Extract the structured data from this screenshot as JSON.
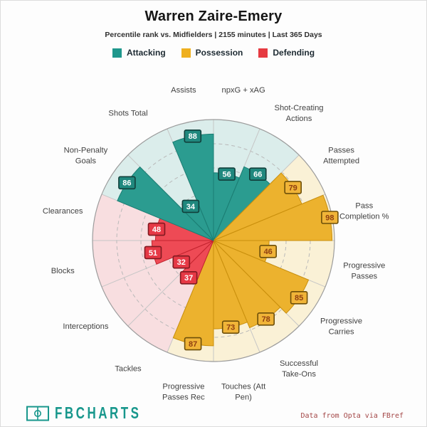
{
  "header": {
    "title": "Warren Zaire-Emery",
    "subtitle": "Percentile rank vs. Midfielders | 2155 minutes | Last 365 Days"
  },
  "legend": [
    {
      "label": "Attacking",
      "color": "#1f978c"
    },
    {
      "label": "Possession",
      "color": "#efb01f"
    },
    {
      "label": "Defending",
      "color": "#e63a41"
    }
  ],
  "footer": {
    "brand": "FBCHARTS",
    "brand_color": "#18978c",
    "credit": "Data from Opta via FBref"
  },
  "chart_data": {
    "type": "bar",
    "variant": "polar-pizza-percentile",
    "title": "Warren Zaire-Emery",
    "subtitle": "Percentile rank vs. Midfielders | 2155 minutes | Last 365 Days",
    "r_axis": {
      "min": 0,
      "max": 100,
      "gridlines": [
        20,
        40,
        60,
        80
      ],
      "grid_style": "dashed"
    },
    "slices_clockwise_from_top": [
      {
        "label_lines": [
          "npxG + xAG"
        ],
        "value": 56,
        "group": "Attacking"
      },
      {
        "label_lines": [
          "Shot-Creating",
          "Actions"
        ],
        "value": 66,
        "group": "Attacking"
      },
      {
        "label_lines": [
          "Passes",
          "Attempted"
        ],
        "value": 79,
        "group": "Possession"
      },
      {
        "label_lines": [
          "Pass",
          "Completion %"
        ],
        "value": 98,
        "group": "Possession"
      },
      {
        "label_lines": [
          "Progressive",
          "Passes"
        ],
        "value": 46,
        "group": "Possession"
      },
      {
        "label_lines": [
          "Progressive",
          "Carries"
        ],
        "value": 85,
        "group": "Possession"
      },
      {
        "label_lines": [
          "Successful",
          "Take-Ons"
        ],
        "value": 78,
        "group": "Possession"
      },
      {
        "label_lines": [
          "Touches (Att",
          "Pen)"
        ],
        "value": 73,
        "group": "Possession"
      },
      {
        "label_lines": [
          "Progressive",
          "Passes Rec"
        ],
        "value": 87,
        "group": "Possession"
      },
      {
        "label_lines": [
          "Tackles"
        ],
        "value": 37,
        "group": "Defending"
      },
      {
        "label_lines": [
          "Interceptions"
        ],
        "value": 32,
        "group": "Defending"
      },
      {
        "label_lines": [
          "Blocks"
        ],
        "value": 51,
        "group": "Defending"
      },
      {
        "label_lines": [
          "Clearances"
        ],
        "value": 48,
        "group": "Defending"
      },
      {
        "label_lines": [
          "Non-Penalty",
          "Goals"
        ],
        "value": 86,
        "group": "Attacking"
      },
      {
        "label_lines": [
          "Shots Total"
        ],
        "value": 34,
        "group": "Attacking"
      },
      {
        "label_lines": [
          "Assists"
        ],
        "value": 88,
        "group": "Attacking"
      }
    ],
    "groups": {
      "Attacking": {
        "fill": "#2b9c90",
        "bg": "#dbedeb",
        "stroke": "#1b7d73",
        "box_fill": "#20887e",
        "box_border": "#113f3b",
        "box_text": "#ffffff"
      },
      "Possession": {
        "fill": "#ecb22e",
        "bg": "#faf1d6",
        "stroke": "#c98f0c",
        "box_fill": "#f0b438",
        "box_border": "#6d4f09",
        "box_text": "#8f3e10"
      },
      "Defending": {
        "fill": "#ee4a55",
        "bg": "#f8dee0",
        "stroke": "#c3242f",
        "box_fill": "#e63946",
        "box_border": "#801a21",
        "box_text": "#ffffff"
      }
    },
    "layout": {
      "center": [
        300,
        338
      ],
      "radius_px": 170,
      "label_radius_px": 216,
      "spoke_color": "#c6c6c6",
      "grid_color": "#b9b9b9",
      "ring_color": "#9c9c9c",
      "label_color": "#424242"
    }
  }
}
